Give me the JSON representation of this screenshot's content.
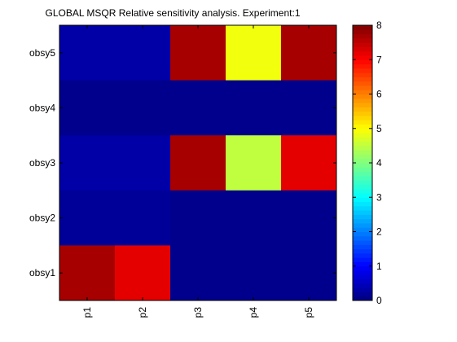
{
  "chart_data": {
    "type": "heatmap",
    "title": "GLOBAL MSQR Relative sensitivity analysis. Experiment:1",
    "xlabel": "",
    "ylabel": "",
    "x_categories": [
      "p1",
      "p2",
      "p3",
      "p4",
      "p5"
    ],
    "y_categories": [
      "obsy5",
      "obsy4",
      "obsy3",
      "obsy2",
      "obsy1"
    ],
    "values": [
      [
        0.3,
        0.3,
        7.7,
        4.9,
        7.7
      ],
      [
        0.1,
        0.1,
        0.1,
        0.1,
        0.1
      ],
      [
        0.3,
        0.3,
        7.7,
        4.5,
        7.2
      ],
      [
        0.2,
        0.2,
        0.1,
        0.1,
        0.1
      ],
      [
        7.7,
        7.2,
        0.1,
        0.1,
        0.1
      ]
    ],
    "colormap": "jet",
    "clim": [
      0,
      8
    ],
    "colorbar": {
      "ticks": [
        0,
        1,
        2,
        3,
        4,
        5,
        6,
        7,
        8
      ],
      "tick_labels": [
        "0",
        "1",
        "2",
        "3",
        "4",
        "5",
        "6",
        "7",
        "8"
      ]
    },
    "grid": false
  }
}
